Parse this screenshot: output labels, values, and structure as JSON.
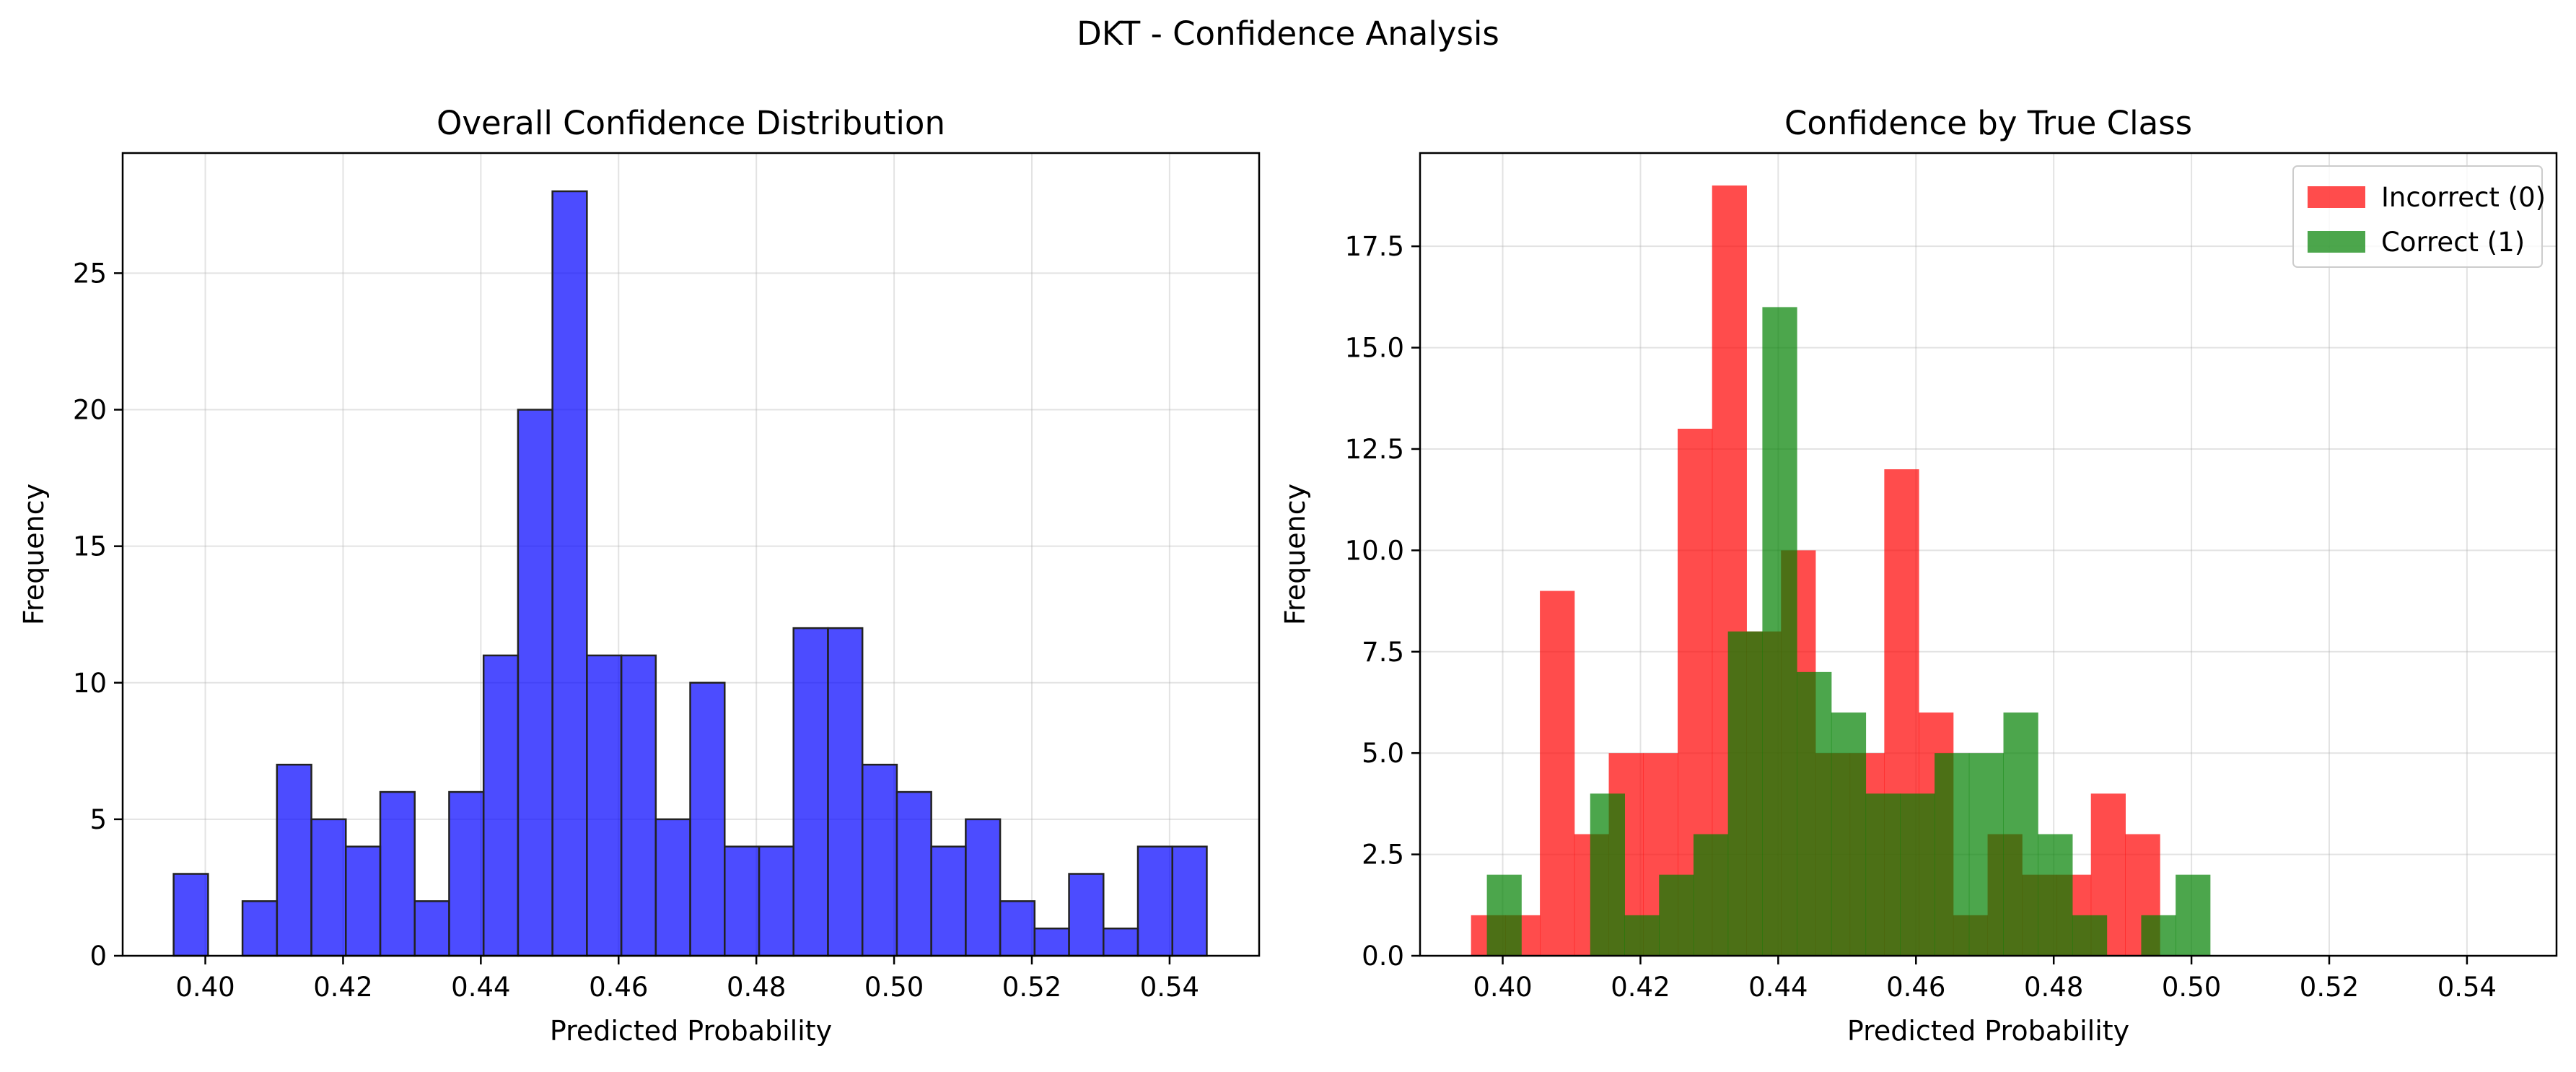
{
  "figure": {
    "title": "DKT - Confidence Analysis"
  },
  "colors": {
    "overall": "#0000ff",
    "incorrect": "#ff0000",
    "correct": "#008000",
    "edge": "#222222"
  },
  "chart_data": [
    {
      "type": "bar",
      "title": "Overall Confidence Distribution",
      "xlabel": "Predicted Probability",
      "ylabel": "Frequency",
      "xlim": [
        0.388,
        0.553
      ],
      "ylim": [
        0,
        29.4
      ],
      "xticks": [
        0.4,
        0.42,
        0.44,
        0.46,
        0.48,
        0.5,
        0.52,
        0.54
      ],
      "xtick_labels": [
        "0.40",
        "0.42",
        "0.44",
        "0.46",
        "0.48",
        "0.50",
        "0.52",
        "0.54"
      ],
      "yticks": [
        0,
        5,
        10,
        15,
        20,
        25
      ],
      "ytick_labels": [
        "0",
        "5",
        "10",
        "15",
        "20",
        "25"
      ],
      "grid": true,
      "bin_start": 0.3954,
      "bin_width": 0.005,
      "values": [
        3,
        0,
        2,
        7,
        5,
        4,
        6,
        2,
        6,
        11,
        20,
        28,
        11,
        11,
        5,
        10,
        4,
        4,
        12,
        12,
        7,
        6,
        4,
        5,
        2,
        1,
        3,
        1,
        4,
        4
      ]
    },
    {
      "type": "bar",
      "title": "Confidence by True Class",
      "xlabel": "Predicted Probability",
      "ylabel": "Frequency",
      "xlim": [
        0.388,
        0.553
      ],
      "ylim": [
        0,
        19.8
      ],
      "xticks": [
        0.4,
        0.42,
        0.44,
        0.46,
        0.48,
        0.5,
        0.52,
        0.54
      ],
      "xtick_labels": [
        "0.40",
        "0.42",
        "0.44",
        "0.46",
        "0.48",
        "0.50",
        "0.52",
        "0.54"
      ],
      "yticks": [
        0,
        2.5,
        5,
        7.5,
        10,
        12.5,
        15,
        17.5
      ],
      "ytick_labels": [
        "0.0",
        "2.5",
        "5.0",
        "7.5",
        "10.0",
        "12.5",
        "15.0",
        "17.5"
      ],
      "grid": true,
      "legend_position": "top-right",
      "series": [
        {
          "name": "Incorrect (0)",
          "color": "#ff0000",
          "bin_start": 0.3954,
          "bin_width": 0.005,
          "values": [
            1,
            1,
            9,
            3,
            5,
            5,
            13,
            19,
            8,
            10,
            5,
            5,
            12,
            6,
            1,
            3,
            2,
            2,
            4,
            3
          ]
        },
        {
          "name": "Correct (1)",
          "color": "#008000",
          "bin_start": 0.3977,
          "bin_width": 0.005,
          "values": [
            2,
            0,
            0,
            4,
            1,
            2,
            3,
            8,
            16,
            7,
            6,
            4,
            4,
            5,
            5,
            6,
            3,
            1,
            0,
            1,
            2
          ]
        }
      ]
    }
  ]
}
